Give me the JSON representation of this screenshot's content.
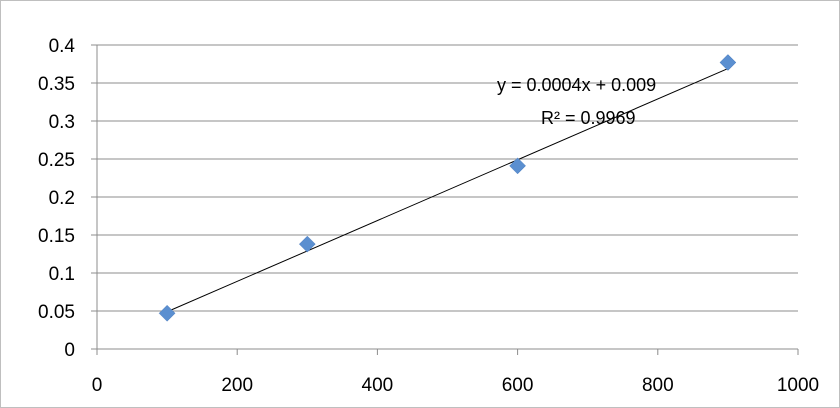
{
  "chart_data": {
    "type": "scatter",
    "title": "",
    "xlabel": "",
    "ylabel": "",
    "xlim": [
      0,
      1000
    ],
    "ylim": [
      0,
      0.4
    ],
    "x_ticks": [
      "0",
      "200",
      "400",
      "600",
      "800",
      "1000"
    ],
    "y_ticks": [
      "0",
      "0.05",
      "0.1",
      "0.15",
      "0.2",
      "0.25",
      "0.3",
      "0.35",
      "0.4"
    ],
    "grid": "horizontal",
    "legend": "none",
    "series": [
      {
        "color": "#5b8fd0",
        "marker": "diamond",
        "points": [
          {
            "x": 100,
            "y": 0.047
          },
          {
            "x": 300,
            "y": 0.138
          },
          {
            "x": 600,
            "y": 0.241
          },
          {
            "x": 900,
            "y": 0.377
          }
        ]
      }
    ],
    "trendline": {
      "type": "linear",
      "slope": 0.0004,
      "intercept": 0.009,
      "x_range": [
        100,
        900
      ],
      "equation_label": "y = 0.0004x + 0.009",
      "r2_label": "R² = 0.9969",
      "color": "#000000"
    }
  }
}
